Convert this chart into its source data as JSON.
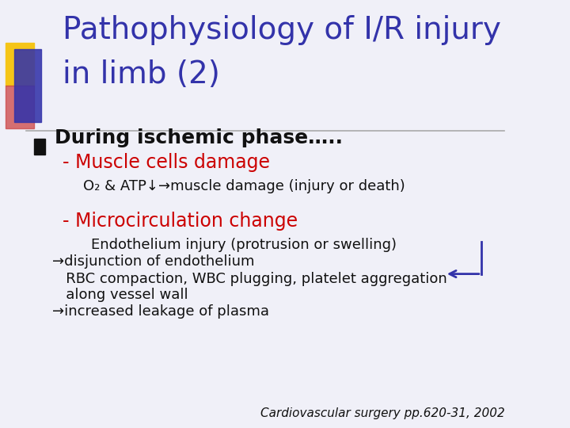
{
  "bg_color": "#f0f0f8",
  "title_line1": "Pathophysiology of I/R injury",
  "title_line2": "in limb (2)",
  "title_color": "#3333aa",
  "title_fontsize": 28,
  "bullet_text": "During ischemic phase…..",
  "bullet_color": "#111111",
  "bullet_fontsize": 18,
  "red_color": "#cc0000",
  "black_color": "#111111",
  "sub1_label": "- Muscle cells damage",
  "sub1_fontsize": 17,
  "detail1": "O₂ & ATP↓→muscle damage (injury or death)",
  "detail1_fontsize": 13,
  "sub2_label": "- Microcirculation change",
  "sub2_fontsize": 17,
  "detail2a": "Endothelium injury (protrusion or swelling)",
  "detail2b": "→disjunction of endothelium",
  "detail2c": "   RBC compaction, WBC plugging, platelet aggregation",
  "detail2d": "   along vessel wall",
  "detail2e": "→increased leakage of plasma",
  "detail_fontsize": 13,
  "footer": "Cardiovascular surgery pp.620-31, 2002",
  "footer_fontsize": 11,
  "square_colors": [
    "#f5c518",
    "#cc4444",
    "#3333aa"
  ],
  "line_color": "#aaaaaa",
  "arrow_color": "#3333aa"
}
